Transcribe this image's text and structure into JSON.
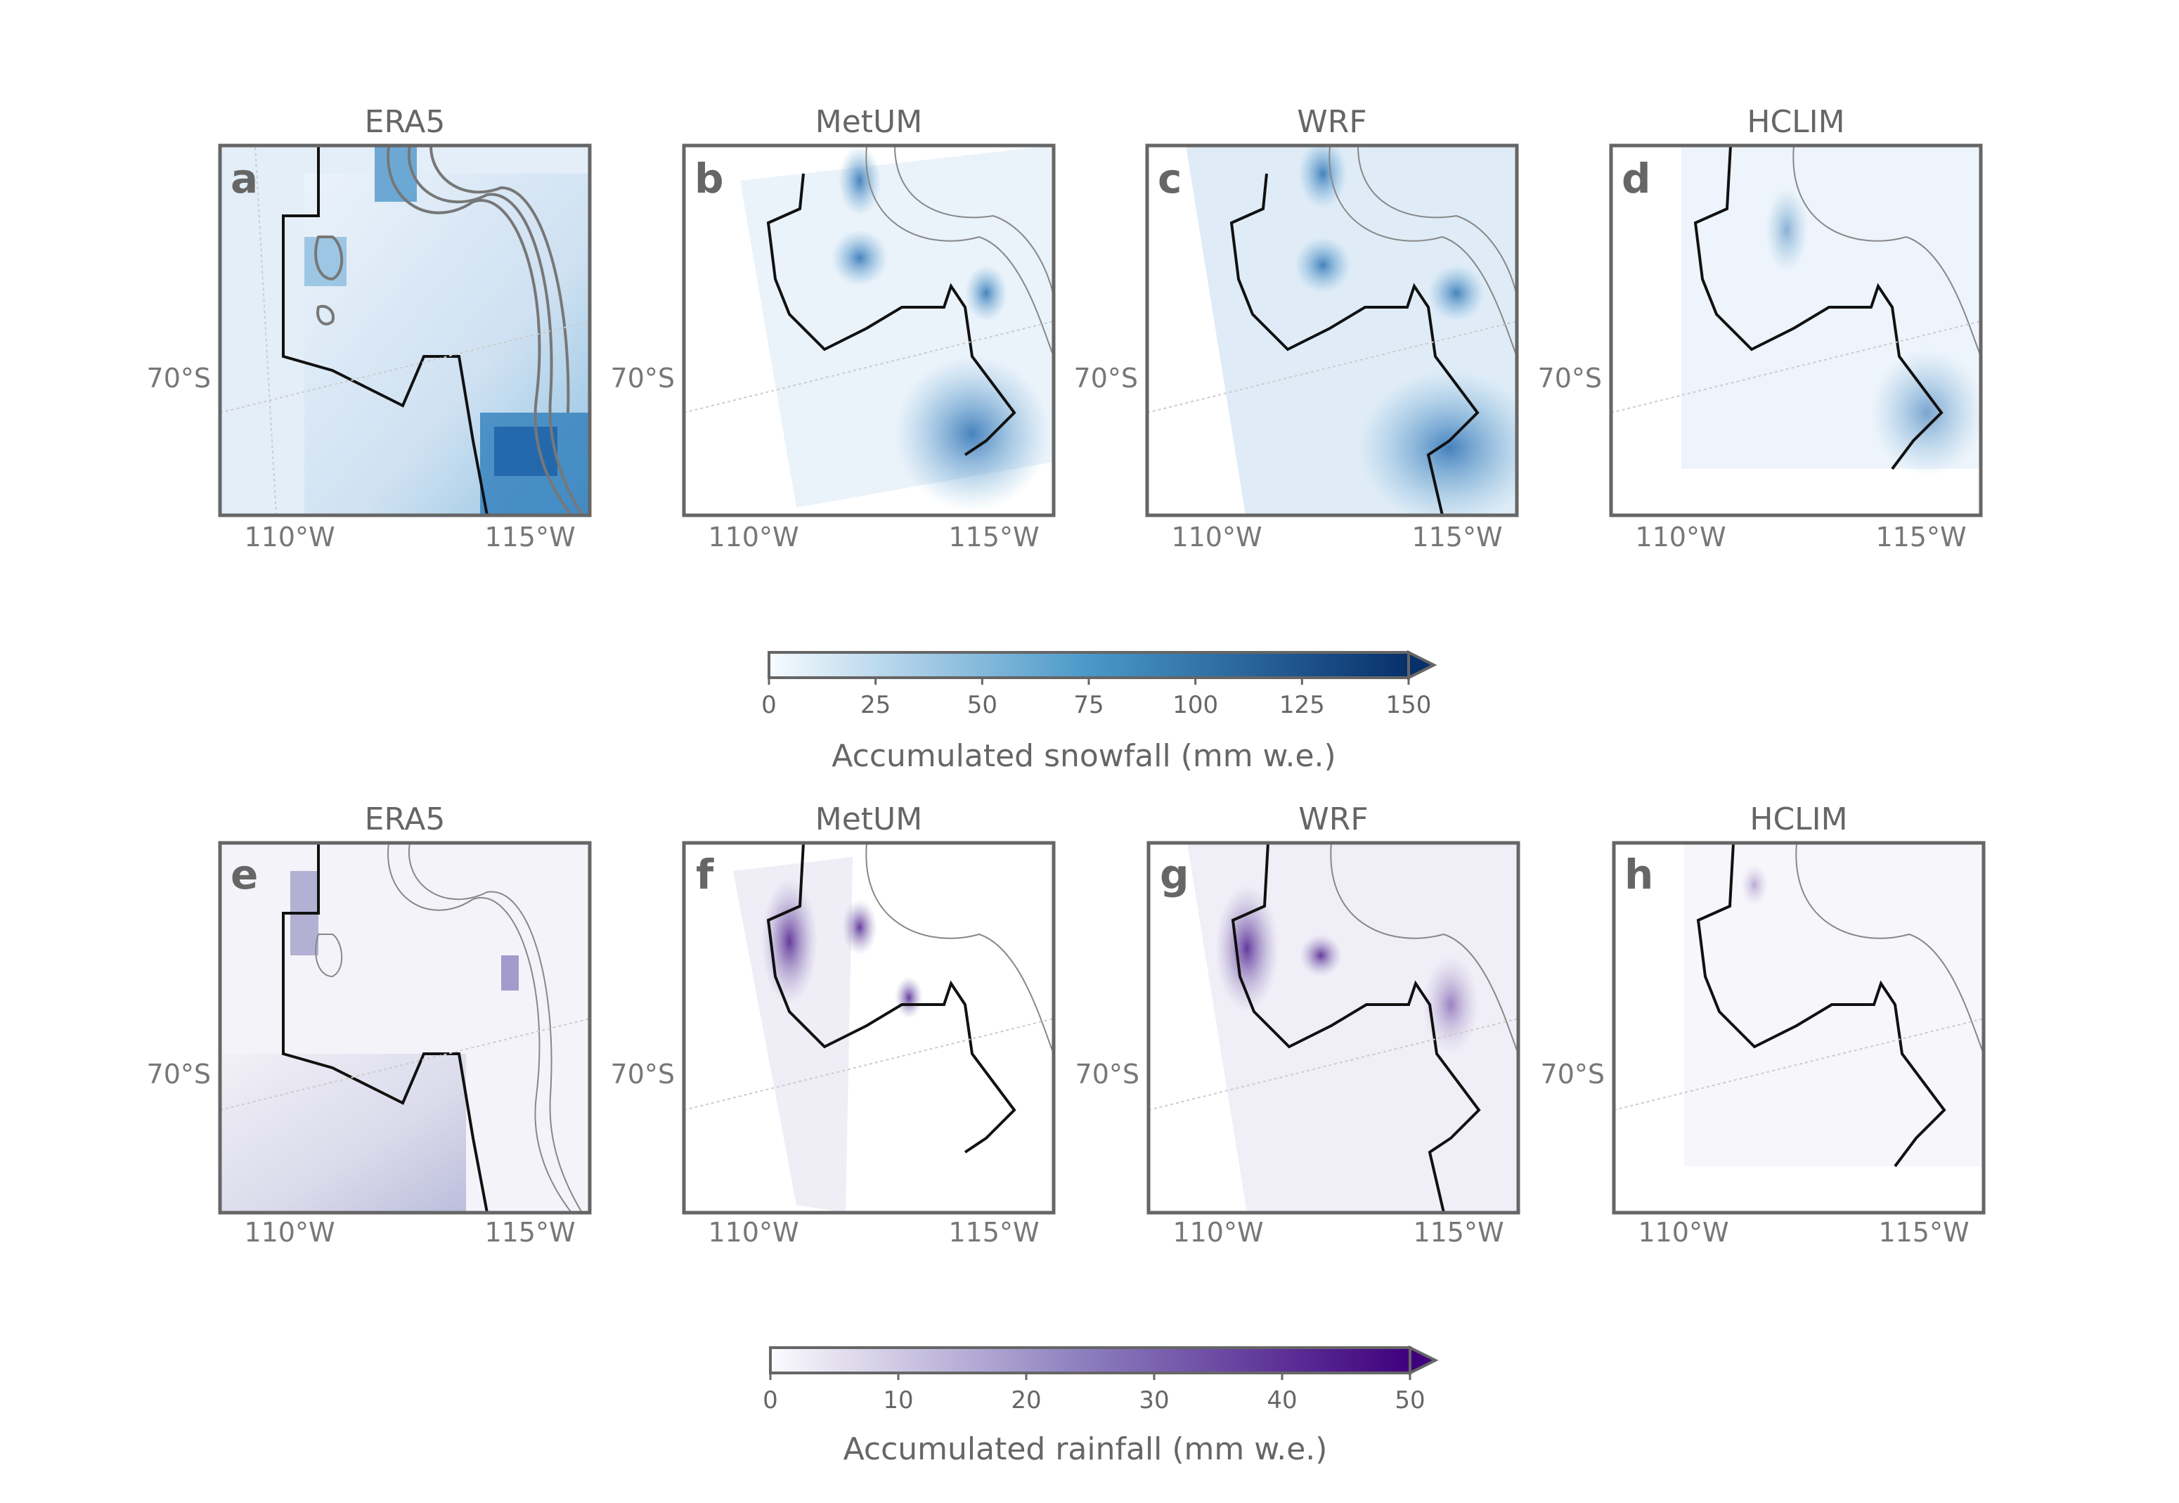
{
  "figure": {
    "rows": [
      {
        "row": "snowfall",
        "panels": [
          {
            "letter": "a",
            "title": "ERA5",
            "model": "ERA5"
          },
          {
            "letter": "b",
            "title": "MetUM",
            "model": "MetUM"
          },
          {
            "letter": "c",
            "title": "WRF",
            "model": "WRF"
          },
          {
            "letter": "d",
            "title": "HCLIM",
            "model": "HCLIM"
          }
        ],
        "colorbar": {
          "label": "Accumulated snowfall (mm w.e.)",
          "ticks": [
            "0",
            "25",
            "50",
            "75",
            "100",
            "125",
            "150"
          ],
          "color_start": "#f7fbff",
          "color_mid": "#4a98c9",
          "color_end": "#08306b"
        }
      },
      {
        "row": "rainfall",
        "panels": [
          {
            "letter": "e",
            "title": "ERA5",
            "model": "ERA5"
          },
          {
            "letter": "f",
            "title": "MetUM",
            "model": "MetUM"
          },
          {
            "letter": "g",
            "title": "WRF",
            "model": "WRF"
          },
          {
            "letter": "h",
            "title": "HCLIM",
            "model": "HCLIM"
          }
        ],
        "colorbar": {
          "label": "Accumulated rainfall (mm w.e.)",
          "ticks": [
            "0",
            "10",
            "20",
            "30",
            "40",
            "50"
          ],
          "color_start": "#fcfbfd",
          "color_mid": "#8a7cbd",
          "color_end": "#3f007d"
        }
      }
    ],
    "axis_labels": {
      "lat": "70°S",
      "lon_left": "110°W",
      "lon_right": "115°W"
    }
  },
  "chart_data": [
    {
      "type": "heatmap",
      "variable": "Accumulated snowfall",
      "unit": "mm w.e.",
      "panels": [
        "ERA5",
        "MetUM",
        "WRF",
        "HCLIM"
      ],
      "colorbar_range": [
        0,
        150
      ],
      "colorbar_extend": "max",
      "colorbar_ticks": [
        0,
        25,
        50,
        75,
        100,
        125,
        150
      ],
      "colormap": "Blues",
      "latitude_labels": [
        "70°S"
      ],
      "longitude_labels": [
        "110°W",
        "115°W"
      ]
    },
    {
      "type": "heatmap",
      "variable": "Accumulated rainfall",
      "unit": "mm w.e.",
      "panels": [
        "ERA5",
        "MetUM",
        "WRF",
        "HCLIM"
      ],
      "colorbar_range": [
        0,
        50
      ],
      "colorbar_extend": "max",
      "colorbar_ticks": [
        0,
        10,
        20,
        30,
        40,
        50
      ],
      "colormap": "Purples",
      "latitude_labels": [
        "70°S"
      ],
      "longitude_labels": [
        "110°W",
        "115°W"
      ]
    }
  ]
}
